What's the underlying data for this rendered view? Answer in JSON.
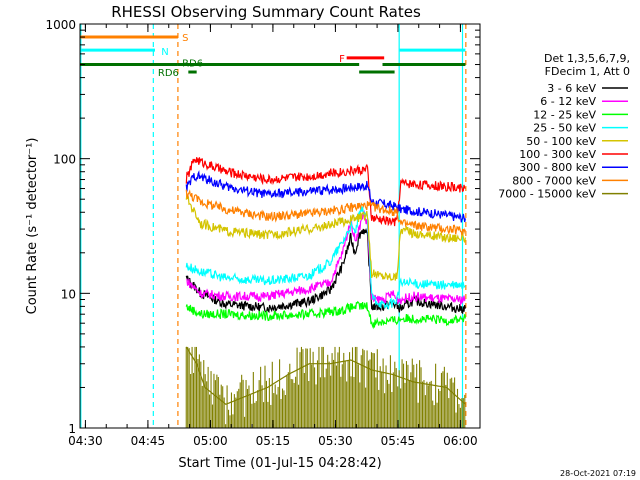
{
  "chart_data": {
    "type": "line",
    "title": "RHESSI Observing Summary Count Rates",
    "xlabel": "Start Time (01-Jul-15 04:28:42)",
    "ylabel": "Count Rate (s⁻¹ detector⁻¹)",
    "yscale": "log",
    "ylim": [
      1,
      1000
    ],
    "xlim_minutes": [
      0,
      96
    ],
    "x_ticks": [
      {
        "m": 1.3,
        "label": "04:30"
      },
      {
        "m": 16.3,
        "label": "04:45"
      },
      {
        "m": 31.3,
        "label": "05:00"
      },
      {
        "m": 46.3,
        "label": "05:15"
      },
      {
        "m": 61.3,
        "label": "05:30"
      },
      {
        "m": 76.3,
        "label": "05:45"
      },
      {
        "m": 91.3,
        "label": "06:00"
      }
    ],
    "y_ticks": [
      {
        "v": 1,
        "label": "1"
      },
      {
        "v": 10,
        "label": "10"
      },
      {
        "v": 100,
        "label": "100"
      },
      {
        "v": 1000,
        "label": "1000"
      }
    ],
    "legend_header": [
      "Det 1,3,5,6,7,9,",
      "FDecim 1, Att 0"
    ],
    "series": [
      {
        "name": "3 - 6 keV",
        "color": "#000000",
        "points": [
          [
            25.5,
            13
          ],
          [
            29,
            10
          ],
          [
            35,
            8.3
          ],
          [
            45,
            7.8
          ],
          [
            55,
            8.7
          ],
          [
            60,
            10.5
          ],
          [
            63,
            16
          ],
          [
            65,
            26
          ],
          [
            66,
            20
          ],
          [
            67,
            27
          ],
          [
            68,
            30
          ],
          [
            69,
            26
          ],
          [
            70,
            8
          ],
          [
            73,
            8
          ],
          [
            75,
            8.5
          ],
          [
            76,
            8
          ],
          [
            77,
            7.7
          ],
          [
            80,
            8.8
          ],
          [
            88,
            8
          ],
          [
            91,
            7.7
          ],
          [
            92.5,
            7.7
          ]
        ]
      },
      {
        "name": "6 - 12 keV",
        "color": "#ff00ff",
        "points": [
          [
            25.5,
            12.5
          ],
          [
            29,
            10
          ],
          [
            35,
            9.5
          ],
          [
            45,
            9.5
          ],
          [
            55,
            10.8
          ],
          [
            60,
            12
          ],
          [
            63,
            20
          ],
          [
            65,
            35
          ],
          [
            66,
            25
          ],
          [
            67,
            30
          ],
          [
            68,
            40
          ],
          [
            69,
            32
          ],
          [
            70,
            9
          ],
          [
            73,
            9
          ],
          [
            75,
            10
          ],
          [
            76,
            9
          ],
          [
            77,
            9
          ],
          [
            80,
            9.5
          ],
          [
            88,
            9
          ],
          [
            91,
            9
          ],
          [
            92.5,
            9
          ]
        ]
      },
      {
        "name": "12 - 25 keV",
        "color": "#00ff00",
        "points": [
          [
            25.5,
            8
          ],
          [
            29,
            7
          ],
          [
            35,
            7
          ],
          [
            45,
            6.8
          ],
          [
            55,
            7
          ],
          [
            60,
            7.3
          ],
          [
            63,
            7.5
          ],
          [
            66,
            8
          ],
          [
            69,
            8
          ],
          [
            70,
            6
          ],
          [
            73,
            6.2
          ],
          [
            76,
            6.3
          ],
          [
            77,
            6.5
          ],
          [
            80,
            6.5
          ],
          [
            88,
            6.3
          ],
          [
            92.5,
            6.5
          ]
        ]
      },
      {
        "name": "25 - 50 keV",
        "color": "#00ffff",
        "points": [
          [
            25.5,
            16
          ],
          [
            29,
            14.5
          ],
          [
            35,
            13
          ],
          [
            45,
            12.3
          ],
          [
            55,
            13.5
          ],
          [
            60,
            17
          ],
          [
            63,
            24
          ],
          [
            65,
            32
          ],
          [
            66,
            28
          ],
          [
            67,
            38
          ],
          [
            68,
            42
          ],
          [
            69,
            36
          ],
          [
            70,
            9.5
          ],
          [
            73,
            8
          ],
          [
            75,
            8.5
          ],
          [
            76,
            9
          ],
          [
            77,
            12
          ],
          [
            80,
            11.8
          ],
          [
            88,
            11.5
          ],
          [
            92.5,
            11.3
          ]
        ]
      },
      {
        "name": "50 - 100 keV",
        "color": "#d4c400",
        "points": [
          [
            25.5,
            52
          ],
          [
            29,
            33
          ],
          [
            35,
            29
          ],
          [
            45,
            27
          ],
          [
            55,
            30
          ],
          [
            60,
            32
          ],
          [
            63,
            34
          ],
          [
            66,
            36
          ],
          [
            69,
            38
          ],
          [
            70,
            14
          ],
          [
            73,
            13.5
          ],
          [
            76,
            13.3
          ],
          [
            77,
            30
          ],
          [
            80,
            28
          ],
          [
            88,
            26
          ],
          [
            92.5,
            26
          ]
        ]
      },
      {
        "name": "100 - 300 keV",
        "color": "#ff0000",
        "points": [
          [
            25.5,
            70
          ],
          [
            27.5,
            100
          ],
          [
            29,
            95
          ],
          [
            35,
            80
          ],
          [
            45,
            70
          ],
          [
            55,
            74
          ],
          [
            60,
            78
          ],
          [
            63,
            80
          ],
          [
            66,
            82
          ],
          [
            69,
            83
          ],
          [
            70,
            36
          ],
          [
            73,
            35
          ],
          [
            75,
            34
          ],
          [
            76,
            34
          ],
          [
            77,
            66
          ],
          [
            80,
            65
          ],
          [
            88,
            62
          ],
          [
            92.5,
            60
          ]
        ]
      },
      {
        "name": "300 - 800 keV",
        "color": "#0000ff",
        "points": [
          [
            25.5,
            60
          ],
          [
            27.5,
            75
          ],
          [
            29,
            73
          ],
          [
            35,
            62
          ],
          [
            45,
            54
          ],
          [
            55,
            57
          ],
          [
            60,
            59
          ],
          [
            63,
            60
          ],
          [
            66,
            62
          ],
          [
            69,
            63
          ],
          [
            70,
            48
          ],
          [
            73,
            46
          ],
          [
            76,
            44
          ],
          [
            77,
            42
          ],
          [
            80,
            41
          ],
          [
            88,
            38
          ],
          [
            92.5,
            36
          ]
        ]
      },
      {
        "name": "800 - 7000 keV",
        "color": "#ff8000",
        "points": [
          [
            25.5,
            56
          ],
          [
            29,
            48
          ],
          [
            35,
            42
          ],
          [
            45,
            37
          ],
          [
            55,
            39
          ],
          [
            60,
            41
          ],
          [
            63,
            42
          ],
          [
            66,
            44
          ],
          [
            69,
            45
          ],
          [
            70,
            44
          ],
          [
            73,
            42
          ],
          [
            76,
            40
          ],
          [
            77,
            33
          ],
          [
            80,
            32
          ],
          [
            88,
            30
          ],
          [
            92.5,
            29
          ]
        ]
      },
      {
        "name": "7000 - 15000 keV",
        "color": "#808000",
        "points": [
          [
            25.5,
            4
          ],
          [
            28,
            3
          ],
          [
            30,
            2
          ],
          [
            35,
            1.5
          ],
          [
            45,
            2
          ],
          [
            50,
            2.5
          ],
          [
            55,
            3
          ],
          [
            60,
            3
          ],
          [
            65,
            3.2
          ],
          [
            70,
            2.7
          ],
          [
            75,
            2.5
          ],
          [
            80,
            2.2
          ],
          [
            88,
            2
          ],
          [
            92.5,
            1.5
          ]
        ]
      }
    ],
    "state_bars": [
      {
        "label": "S",
        "color": "#ff8000",
        "y": 800,
        "segments": [
          [
            0,
            23.5
          ]
        ]
      },
      {
        "label": "N",
        "color": "#00ffff",
        "y": 640,
        "segments": [
          [
            0,
            18
          ],
          [
            76.7,
            92.5
          ]
        ]
      },
      {
        "label": "F",
        "color": "#ff0000",
        "y": 560,
        "segments": [
          [
            64,
            73
          ]
        ]
      },
      {
        "label": "RD6",
        "color": "#007000",
        "y": 500,
        "segments": [
          [
            0,
            23.5
          ],
          [
            23.5,
            67
          ],
          [
            72.6,
            92.5
          ]
        ]
      },
      {
        "label": "RD6",
        "color": "#007000",
        "y": 440,
        "segments": [
          [
            26,
            28
          ],
          [
            67,
            75.5
          ]
        ]
      }
    ],
    "vertical_markers": [
      {
        "m": 0.2,
        "color": "#00ffff",
        "style": "solid"
      },
      {
        "m": 17.6,
        "color": "#00ffff",
        "style": "dashed"
      },
      {
        "m": 23.5,
        "color": "#ff8000",
        "style": "dashed"
      },
      {
        "m": 76.6,
        "color": "#00ffff",
        "style": "solid"
      },
      {
        "m": 91.8,
        "color": "#00ffff",
        "style": "solid"
      },
      {
        "m": 92.6,
        "color": "#ff8000",
        "style": "dashed"
      }
    ],
    "timestamp": "28-Oct-2021 07:19",
    "grid": false,
    "legend_position": "right"
  }
}
